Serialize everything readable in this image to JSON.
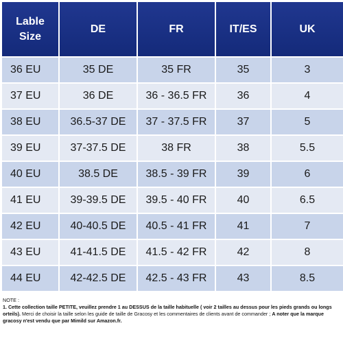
{
  "headers": [
    "Lable\nSize",
    "DE",
    "FR",
    "IT/ES",
    "UK"
  ],
  "rows": [
    [
      "36 EU",
      "35 DE",
      "35 FR",
      "35",
      "3"
    ],
    [
      "37 EU",
      "36 DE",
      "36 - 36.5 FR",
      "36",
      "4"
    ],
    [
      "38 EU",
      "36.5-37 DE",
      "37 - 37.5 FR",
      "37",
      "5"
    ],
    [
      "39 EU",
      "37-37.5 DE",
      "38 FR",
      "38",
      "5.5"
    ],
    [
      "40 EU",
      "38.5 DE",
      "38.5 - 39 FR",
      "39",
      "6"
    ],
    [
      "41 EU",
      "39-39.5 DE",
      "39.5 - 40 FR",
      "40",
      "6.5"
    ],
    [
      "42 EU",
      "40-40.5 DE",
      "40.5 - 41 FR",
      "41",
      "7"
    ],
    [
      "43 EU",
      "41-41.5 DE",
      "41.5 - 42 FR",
      "42",
      "8"
    ],
    [
      "44 EU",
      "42-42.5 DE",
      "42.5 - 43 FR",
      "43",
      "8.5"
    ]
  ],
  "note": {
    "title": "NOTE :",
    "line1": "1. Cette collection taille PETITE, veuillez prendre 1 au DESSUS de la taille habituelle ( voir 2 tailles au dessus pour les pieds grands ou longs orteils).",
    "line2": "Merci de choisir la taille selon les guide de taille de Gracosy et les commentaires de clients avant de commander ;",
    "line3": "A noter que la marque gracosy n'est vendu que par Mimild sur Amazon.fr."
  }
}
